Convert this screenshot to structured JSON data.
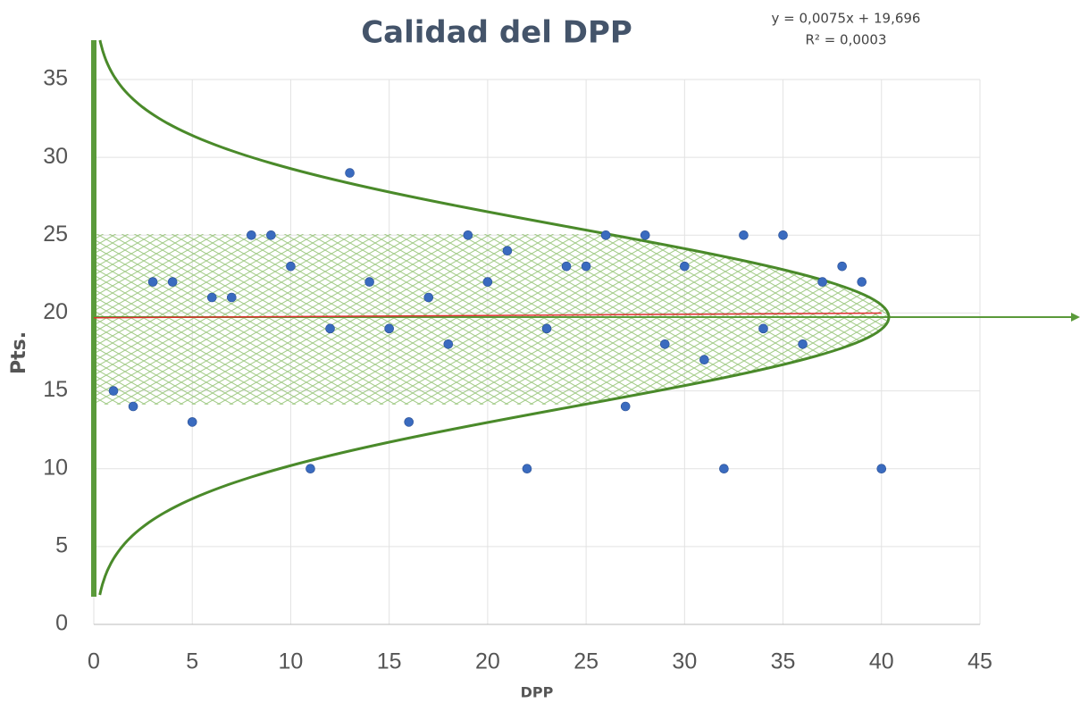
{
  "chart_data": {
    "type": "scatter",
    "title": "Calidad del DPP",
    "annotations": [
      "y = 0,0075x + 19,696",
      "R² = 0,0003"
    ],
    "trendline": {
      "slope": 0.0075,
      "intercept": 19.696,
      "color": "#e03030"
    },
    "x_label": "DPP",
    "y_label": "Pts.",
    "series": [
      {
        "name": "Pts.",
        "color": "#3a6bbf",
        "x": [
          1,
          2,
          3,
          4,
          5,
          6,
          7,
          8,
          9,
          10,
          11,
          12,
          13,
          14,
          15,
          16,
          17,
          18,
          19,
          20,
          21,
          22,
          23,
          24,
          25,
          26,
          27,
          28,
          29,
          30,
          31,
          32,
          33,
          34,
          35,
          36,
          37,
          38,
          39,
          40
        ],
        "values": [
          15,
          14,
          22,
          22,
          13,
          21,
          21,
          25,
          25,
          23,
          10,
          19,
          29,
          22,
          19,
          13,
          21,
          18,
          25,
          22,
          24,
          10,
          19,
          23,
          23,
          25,
          14,
          25,
          18,
          23,
          17,
          10,
          25,
          19,
          25,
          18,
          22,
          23,
          22,
          10
        ]
      }
    ],
    "xlim": [
      0,
      45
    ],
    "xticks": [
      0,
      5,
      10,
      15,
      20,
      25,
      30,
      35,
      40,
      45
    ],
    "ylim": [
      0,
      35
    ],
    "yticks": [
      0,
      5,
      10,
      15,
      20,
      25,
      30,
      35
    ],
    "grid": true
  }
}
